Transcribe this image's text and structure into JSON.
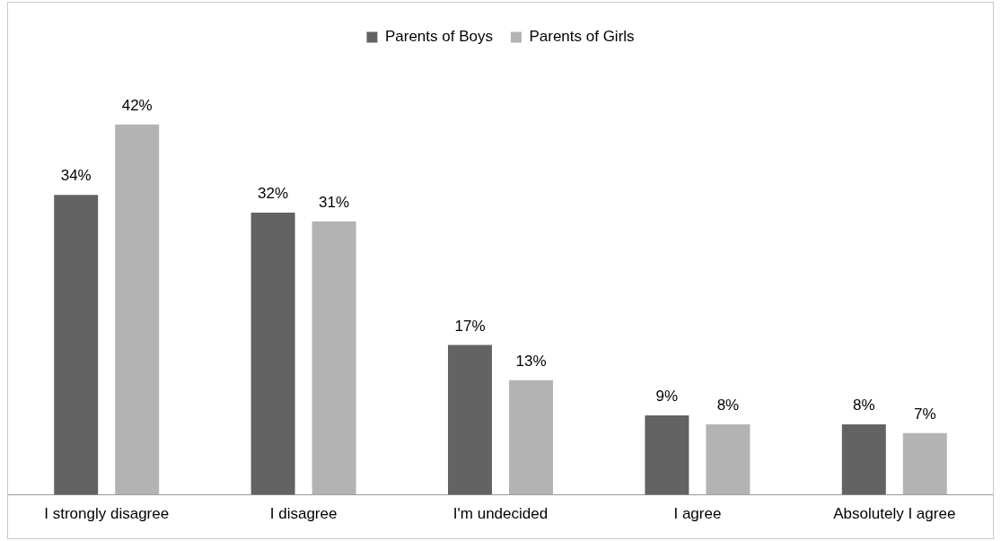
{
  "chart_data": {
    "type": "bar",
    "categories": [
      "I strongly disagree",
      "I disagree",
      "I'm undecided",
      "I agree",
      "Absolutely I agree"
    ],
    "series": [
      {
        "name": "Parents of Boys",
        "color": "#636363",
        "values": [
          34,
          32,
          17,
          9,
          8
        ],
        "value_labels": [
          "34%",
          "32%",
          "17%",
          "9%",
          "8%"
        ]
      },
      {
        "name": "Parents of Girls",
        "color": "#b3b3b3",
        "values": [
          42,
          31,
          13,
          8,
          7
        ],
        "value_labels": [
          "42%",
          "31%",
          "13%",
          "8%",
          "7%"
        ]
      }
    ],
    "legend": "top",
    "grid": false
  }
}
